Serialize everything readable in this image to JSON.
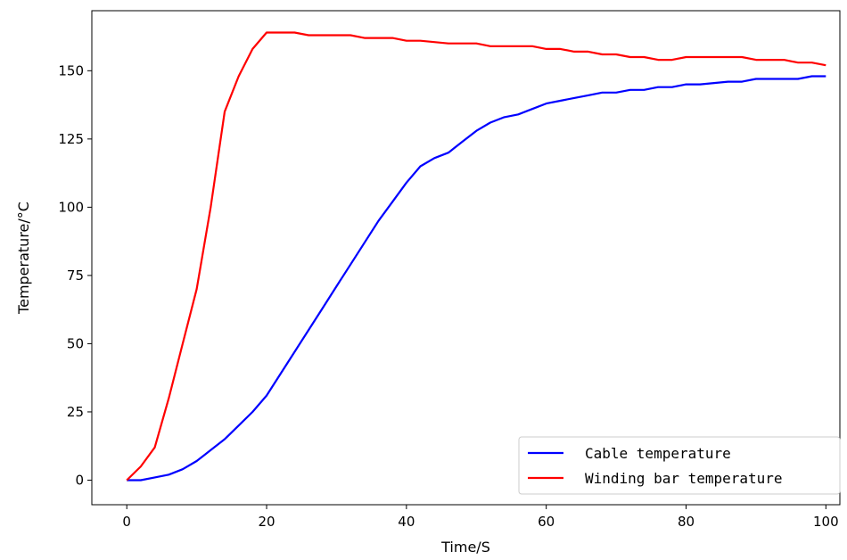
{
  "chart_data": {
    "type": "line",
    "xlabel": "Time/S",
    "ylabel": "Temperature/°C",
    "xlim": [
      -5,
      102
    ],
    "ylim": [
      -9,
      172
    ],
    "xticks": [
      0,
      20,
      40,
      60,
      80,
      100
    ],
    "yticks": [
      0,
      25,
      50,
      75,
      100,
      125,
      150
    ],
    "grid": false,
    "legend_position": "lower-right",
    "series": [
      {
        "name": "Cable temperature",
        "color": "#0000ff",
        "x": [
          0,
          2,
          4,
          6,
          8,
          10,
          12,
          14,
          16,
          18,
          20,
          22,
          24,
          26,
          28,
          30,
          32,
          34,
          36,
          38,
          40,
          42,
          44,
          46,
          48,
          50,
          52,
          54,
          56,
          58,
          60,
          62,
          64,
          66,
          68,
          70,
          72,
          74,
          76,
          78,
          80,
          82,
          84,
          86,
          88,
          90,
          92,
          94,
          96,
          98,
          100
        ],
        "y": [
          0,
          0,
          1,
          2,
          4,
          7,
          11,
          15,
          20,
          25,
          31,
          39,
          47,
          55,
          63,
          71,
          79,
          87,
          95,
          102,
          109,
          115,
          118,
          120,
          124,
          128,
          131,
          133,
          134,
          136,
          138,
          139,
          140,
          141,
          142,
          142,
          143,
          143,
          144,
          144,
          145,
          145,
          145.5,
          146,
          146,
          147,
          147,
          147,
          147,
          148,
          148
        ]
      },
      {
        "name": "Winding bar temperature",
        "color": "#ff0000",
        "x": [
          0,
          2,
          4,
          6,
          8,
          10,
          12,
          14,
          16,
          18,
          20,
          22,
          24,
          26,
          28,
          30,
          32,
          34,
          36,
          38,
          40,
          42,
          44,
          46,
          48,
          50,
          52,
          54,
          56,
          58,
          60,
          62,
          64,
          66,
          68,
          70,
          72,
          74,
          76,
          78,
          80,
          82,
          84,
          86,
          88,
          90,
          92,
          94,
          96,
          98,
          100
        ],
        "y": [
          0,
          5,
          12,
          30,
          50,
          70,
          100,
          135,
          148,
          158,
          164,
          164,
          164,
          163,
          163,
          163,
          163,
          162,
          162,
          162,
          161,
          161,
          160.5,
          160,
          160,
          160,
          159,
          159,
          159,
          159,
          158,
          158,
          157,
          157,
          156,
          156,
          155,
          155,
          154,
          154,
          155,
          155,
          155,
          155,
          155,
          154,
          154,
          154,
          153,
          153,
          152
        ]
      }
    ]
  }
}
